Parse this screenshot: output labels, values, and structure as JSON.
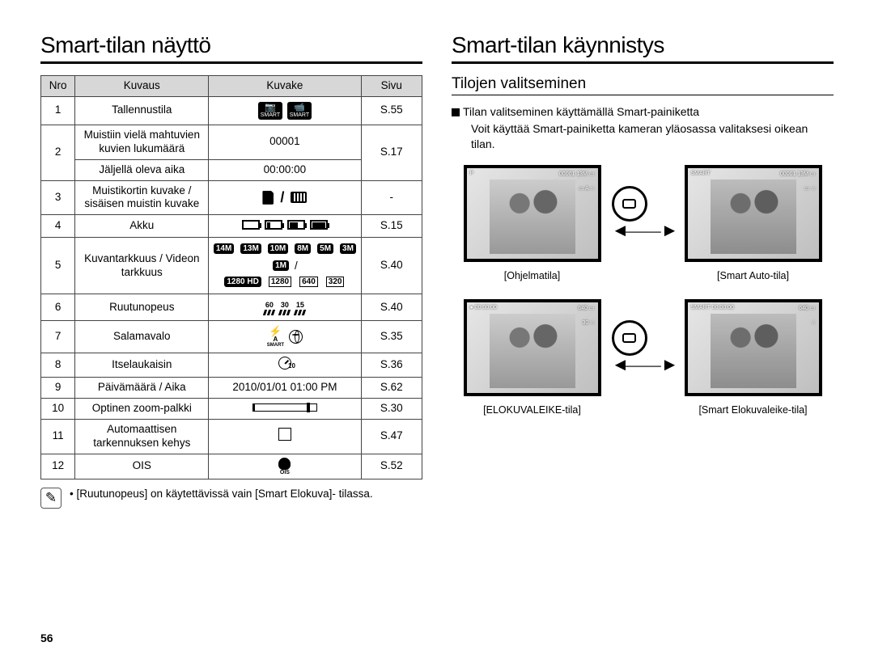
{
  "page_number": "56",
  "left": {
    "title": "Smart-tilan näyttö",
    "table": {
      "headers": {
        "nro": "Nro",
        "kuvaus": "Kuvaus",
        "kuvake": "Kuvake",
        "sivu": "Sivu"
      },
      "rows": [
        {
          "nro": "1",
          "kuvaus": "Tallennustila",
          "icon": "smart_badges",
          "sivu": "S.55"
        },
        {
          "nro": "2",
          "kuvaus_a": "Muistiin vielä mahtuvien kuvien lukumäärä",
          "kuvake_a": "00001",
          "kuvaus_b": "Jäljellä oleva aika",
          "kuvake_b": "00:00:00",
          "sivu": "S.17"
        },
        {
          "nro": "3",
          "kuvaus": "Muistikortin kuvake / sisäisen muistin kuvake",
          "icon": "memory",
          "sivu": "-"
        },
        {
          "nro": "4",
          "kuvaus": "Akku",
          "icon": "battery_levels",
          "sivu": "S.15"
        },
        {
          "nro": "5",
          "kuvaus": "Kuvantarkkuus / Videon tarkkuus",
          "icon": "resolutions",
          "sivu": "S.40",
          "still": [
            "14M",
            "13M",
            "10M",
            "8M",
            "5M",
            "3M",
            "1M"
          ],
          "video": [
            "1280 HD",
            "1280",
            "640",
            "320"
          ]
        },
        {
          "nro": "6",
          "kuvaus": "Ruutunopeus",
          "icon": "fps",
          "vals": [
            "60",
            "30",
            "15"
          ],
          "sivu": "S.40"
        },
        {
          "nro": "7",
          "kuvaus": "Salamavalo",
          "icon": "flash",
          "sivu": "S.35"
        },
        {
          "nro": "8",
          "kuvaus": "Itselaukaisin",
          "icon": "timer",
          "timer_sub": "10",
          "sivu": "S.36"
        },
        {
          "nro": "9",
          "kuvaus": "Päivämäärä / Aika",
          "value": "2010/01/01  01:00 PM",
          "sivu": "S.62"
        },
        {
          "nro": "10",
          "kuvaus": "Optinen zoom-palkki",
          "icon": "zoom_bar",
          "sivu": "S.30"
        },
        {
          "nro": "11",
          "kuvaus": "Automaattisen tarkennuksen kehys",
          "icon": "focus_frame",
          "sivu": "S.47"
        },
        {
          "nro": "12",
          "kuvaus": "OIS",
          "icon": "ois",
          "sivu": "S.52"
        }
      ]
    },
    "note_icon": "✎",
    "note_text": "[Ruutunopeus] on käytettävissä vain [Smart Elokuva]- tilassa."
  },
  "right": {
    "title": "Smart-tilan käynnistys",
    "subheading": "Tilojen valitseminen",
    "bullet": "Tilan valitseminen käyttämällä Smart-painiketta",
    "body": "Voit käyttää Smart-painiketta kameran yläosassa valitaksesi oikean tilan.",
    "modes": [
      {
        "caption": "[Ohjelmatila]",
        "osd_top_left": "P",
        "osd_top_right": "00001  13M  ▭",
        "osd_side": "▭\nA\n☆"
      },
      {
        "caption": "[Smart Auto-tila]",
        "osd_top_left": "SMART",
        "osd_top_right": "00001  13M  ▭",
        "osd_side": "▭\n☆"
      },
      {
        "caption": "[ELOKUVALEIKE-tila]",
        "osd_top_left": "● 00:00:00",
        "osd_top_right": "640  ▭",
        "osd_side": "30\n☆"
      },
      {
        "caption": "[Smart Elokuvaleike-tila]",
        "osd_top_left": "SMART  00:00:00",
        "osd_top_right": "640  ▭",
        "osd_side": "☆"
      }
    ]
  }
}
